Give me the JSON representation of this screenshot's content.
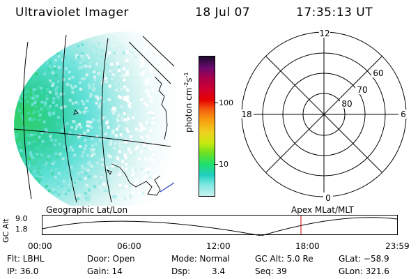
{
  "header": {
    "instrument": "Ultraviolet Imager",
    "date": "18 Jul 07",
    "time": "17:35:13 UT"
  },
  "colorbar": {
    "unit_main": "photon cm",
    "unit_exp1": "-2",
    "unit_s": "s",
    "unit_exp2": "-1",
    "ticks": [
      "100",
      "10"
    ],
    "colors": [
      "#1a0a2a",
      "#6a0a6e",
      "#a8004c",
      "#cc0033",
      "#e60000",
      "#f46010",
      "#f8a010",
      "#f0d020",
      "#c8ea10",
      "#70e020",
      "#20e06a",
      "#20d0c0",
      "#80e8e0",
      "#c8f0f0"
    ]
  },
  "labels": {
    "geo": "Geographic Lat/Lon",
    "apex": "Apex MLat/MLT"
  },
  "polar": {
    "mlt_top": "12",
    "mlt_left": "18",
    "mlt_right": "6",
    "mlt_bottom": "0",
    "lat_60": "60",
    "lat_70": "70",
    "lat_80": "80"
  },
  "orbit": {
    "ylabel": "GC Alt",
    "ytick_top": "9.0",
    "ytick_bot": "1.8",
    "xticks": [
      "00:00",
      "06:00",
      "12:00",
      "18:00",
      "23:59"
    ],
    "marker_time": "17:35"
  },
  "status": {
    "flt": "Flt: LBHL",
    "ip": "IP: 36.0",
    "door": "Door: Open",
    "gain": "Gain: 14",
    "mode": "Mode: Normal",
    "dsp_label": "Dsp:",
    "dsp_value": "3.4",
    "gcalt": "GC Alt: 5.0 Re",
    "seq": "Seq: 39",
    "glat": "GLat: −58.9",
    "glon": "GLon: 321.6"
  }
}
